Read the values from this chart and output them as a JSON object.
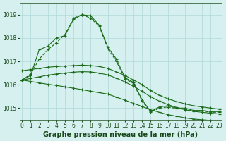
{
  "series": [
    {
      "x": [
        0,
        1,
        2,
        3,
        4,
        5,
        6,
        7,
        8,
        9,
        10,
        11,
        12,
        13,
        14,
        15,
        16,
        17,
        18,
        19,
        20,
        21,
        22,
        23
      ],
      "y": [
        1016.2,
        1016.4,
        1017.5,
        1017.65,
        1018.0,
        1018.1,
        1018.8,
        1019.0,
        1018.95,
        1018.55,
        1017.6,
        1017.1,
        1016.3,
        1016.1,
        1015.35,
        1014.85,
        1015.05,
        1015.1,
        1015.0,
        1015.0,
        1014.9,
        1014.9,
        1014.85,
        1014.85
      ],
      "color": "#1a6b1a",
      "linestyle": "-",
      "marker": "+"
    },
    {
      "x": [
        0,
        1,
        2,
        3,
        4,
        5,
        6,
        7,
        8,
        9,
        10,
        11,
        12,
        13,
        14,
        15,
        16,
        17,
        18,
        19,
        20,
        21,
        22,
        23
      ],
      "y": [
        1016.2,
        1016.45,
        1017.1,
        1017.5,
        1017.8,
        1018.15,
        1018.85,
        1019.0,
        1018.85,
        1018.5,
        1017.55,
        1017.0,
        1016.25,
        1016.05,
        1015.3,
        1014.82,
        1015.0,
        1015.05,
        1014.98,
        1014.95,
        1014.88,
        1014.88,
        1014.82,
        1014.82
      ],
      "color": "#1a6b1a",
      "linestyle": "--",
      "marker": "+"
    },
    {
      "x": [
        0,
        1,
        2,
        3,
        4,
        5,
        6,
        7,
        8,
        9,
        10,
        11,
        12,
        13,
        14,
        15,
        16,
        17,
        18,
        19,
        20,
        21,
        22,
        23
      ],
      "y": [
        1016.6,
        1016.65,
        1016.7,
        1016.75,
        1016.78,
        1016.8,
        1016.82,
        1016.84,
        1016.82,
        1016.78,
        1016.7,
        1016.55,
        1016.4,
        1016.2,
        1016.0,
        1015.75,
        1015.55,
        1015.4,
        1015.28,
        1015.18,
        1015.1,
        1015.05,
        1015.0,
        1014.95
      ],
      "color": "#1a6b1a",
      "linestyle": "-",
      "marker": "+"
    },
    {
      "x": [
        0,
        1,
        2,
        3,
        4,
        5,
        6,
        7,
        8,
        9,
        10,
        11,
        12,
        13,
        14,
        15,
        16,
        17,
        18,
        19,
        20,
        21,
        22,
        23
      ],
      "y": [
        1016.2,
        1016.27,
        1016.34,
        1016.41,
        1016.46,
        1016.5,
        1016.54,
        1016.56,
        1016.55,
        1016.5,
        1016.42,
        1016.28,
        1016.12,
        1015.93,
        1015.72,
        1015.48,
        1015.3,
        1015.15,
        1015.03,
        1014.93,
        1014.86,
        1014.82,
        1014.78,
        1014.75
      ],
      "color": "#1a6b1a",
      "linestyle": "-",
      "marker": "+"
    },
    {
      "x": [
        0,
        1,
        2,
        3,
        4,
        5,
        6,
        7,
        8,
        9,
        10,
        11,
        12,
        13,
        14,
        15,
        16,
        17,
        18,
        19,
        20,
        21,
        22,
        23
      ],
      "y": [
        1016.2,
        1016.14,
        1016.08,
        1016.02,
        1015.97,
        1015.91,
        1015.85,
        1015.79,
        1015.72,
        1015.66,
        1015.6,
        1015.47,
        1015.34,
        1015.2,
        1015.07,
        1014.93,
        1014.82,
        1014.72,
        1014.65,
        1014.58,
        1014.53,
        1014.5,
        1014.47,
        1014.45
      ],
      "color": "#1a6b1a",
      "linestyle": "-",
      "marker": "+"
    }
  ],
  "xlim": [
    -0.3,
    23.3
  ],
  "ylim": [
    1014.5,
    1019.5
  ],
  "yticks": [
    1015,
    1016,
    1017,
    1018,
    1019
  ],
  "xticks": [
    0,
    1,
    2,
    3,
    4,
    5,
    6,
    7,
    8,
    9,
    10,
    11,
    12,
    13,
    14,
    15,
    16,
    17,
    18,
    19,
    20,
    21,
    22,
    23
  ],
  "xlabel": "Graphe pression niveau de la mer (hPa)",
  "background_color": "#d6f0f0",
  "grid_color": "#b0d8d8",
  "line_color": "#1a6b1a",
  "text_color": "#1a4a1a",
  "tick_fontsize": 5.5,
  "label_fontsize": 7
}
